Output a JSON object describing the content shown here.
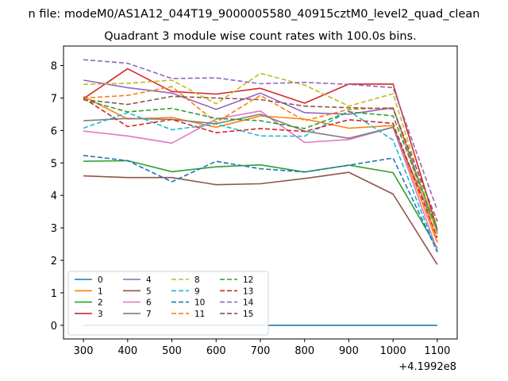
{
  "chart_data": {
    "type": "line",
    "suptitle": "n file: modeM0/AS1A12_044T19_9000005580_40915cztM0_level2_quad_clean",
    "title": "Quadrant 3 module wise count rates with 100.0s bins.",
    "xlabel": "",
    "ylabel": "",
    "x_offset_label": "+4.1992e8",
    "x": [
      300,
      400,
      500,
      600,
      700,
      800,
      900,
      1000,
      1100
    ],
    "xlim": [
      255,
      1145
    ],
    "ylim": [
      -0.42,
      8.6
    ],
    "xticks": [
      300,
      400,
      500,
      600,
      700,
      800,
      900,
      1000,
      1100
    ],
    "yticks": [
      0,
      1,
      2,
      3,
      4,
      5,
      6,
      7,
      8
    ],
    "legend_position": "lower-left",
    "legend_columns": 4,
    "series": [
      {
        "name": "0",
        "color": "#1f77b4",
        "style": "solid",
        "values": [
          0,
          0,
          0,
          0,
          0,
          0,
          0,
          0,
          0
        ]
      },
      {
        "name": "1",
        "color": "#ff7f0e",
        "style": "solid",
        "values": [
          7.05,
          6.35,
          6.4,
          6.1,
          6.45,
          6.35,
          6.07,
          6.15,
          2.55
        ]
      },
      {
        "name": "2",
        "color": "#2ca02c",
        "style": "solid",
        "values": [
          5.05,
          5.07,
          4.73,
          4.88,
          4.94,
          4.72,
          4.93,
          4.7,
          2.38
        ]
      },
      {
        "name": "3",
        "color": "#d62728",
        "style": "solid",
        "values": [
          6.98,
          7.9,
          7.2,
          7.12,
          7.3,
          6.84,
          7.43,
          7.43,
          2.95
        ]
      },
      {
        "name": "4",
        "color": "#9467bd",
        "style": "solid",
        "values": [
          7.55,
          7.32,
          7.15,
          6.65,
          7.15,
          6.55,
          6.5,
          6.7,
          2.85
        ]
      },
      {
        "name": "5",
        "color": "#8c564b",
        "style": "solid",
        "values": [
          4.6,
          4.55,
          4.55,
          4.33,
          4.36,
          4.52,
          4.71,
          4.04,
          1.87
        ]
      },
      {
        "name": "6",
        "color": "#e377c2",
        "style": "solid",
        "values": [
          5.98,
          5.83,
          5.61,
          6.35,
          6.6,
          5.63,
          5.72,
          6.1,
          2.3
        ]
      },
      {
        "name": "7",
        "color": "#7f7f7f",
        "style": "solid",
        "values": [
          6.3,
          6.37,
          6.34,
          6.21,
          6.5,
          5.98,
          5.76,
          6.1,
          2.9
        ]
      },
      {
        "name": "8",
        "color": "#bcbd22",
        "style": "dashed",
        "values": [
          7.42,
          7.45,
          7.55,
          6.82,
          7.76,
          7.4,
          6.75,
          7.13,
          2.8
        ]
      },
      {
        "name": "9",
        "color": "#17becf",
        "style": "dashed",
        "values": [
          6.07,
          6.55,
          6.02,
          6.2,
          5.83,
          5.82,
          6.6,
          5.7,
          2.25
        ]
      },
      {
        "name": "10",
        "color": "#1f77b4",
        "style": "dashed",
        "values": [
          5.23,
          5.07,
          4.42,
          5.05,
          4.82,
          4.72,
          4.93,
          5.15,
          2.27
        ]
      },
      {
        "name": "11",
        "color": "#ff7f0e",
        "style": "dashed",
        "values": [
          7.0,
          7.08,
          7.35,
          6.25,
          7.08,
          6.3,
          6.65,
          6.7,
          2.6
        ]
      },
      {
        "name": "12",
        "color": "#2ca02c",
        "style": "dashed",
        "values": [
          6.95,
          6.57,
          6.68,
          6.37,
          6.3,
          6.06,
          6.57,
          6.45,
          2.95
        ]
      },
      {
        "name": "13",
        "color": "#d62728",
        "style": "dashed",
        "values": [
          7.0,
          6.12,
          6.34,
          5.93,
          6.06,
          5.97,
          6.33,
          6.22,
          2.7
        ]
      },
      {
        "name": "14",
        "color": "#9467bd",
        "style": "dashed",
        "values": [
          8.18,
          8.07,
          7.6,
          7.62,
          7.44,
          7.48,
          7.42,
          7.32,
          3.55
        ]
      },
      {
        "name": "15",
        "color": "#8c564b",
        "style": "dashed",
        "values": [
          6.95,
          6.8,
          7.05,
          7.0,
          6.95,
          6.75,
          6.7,
          6.67,
          3.2
        ]
      }
    ]
  }
}
